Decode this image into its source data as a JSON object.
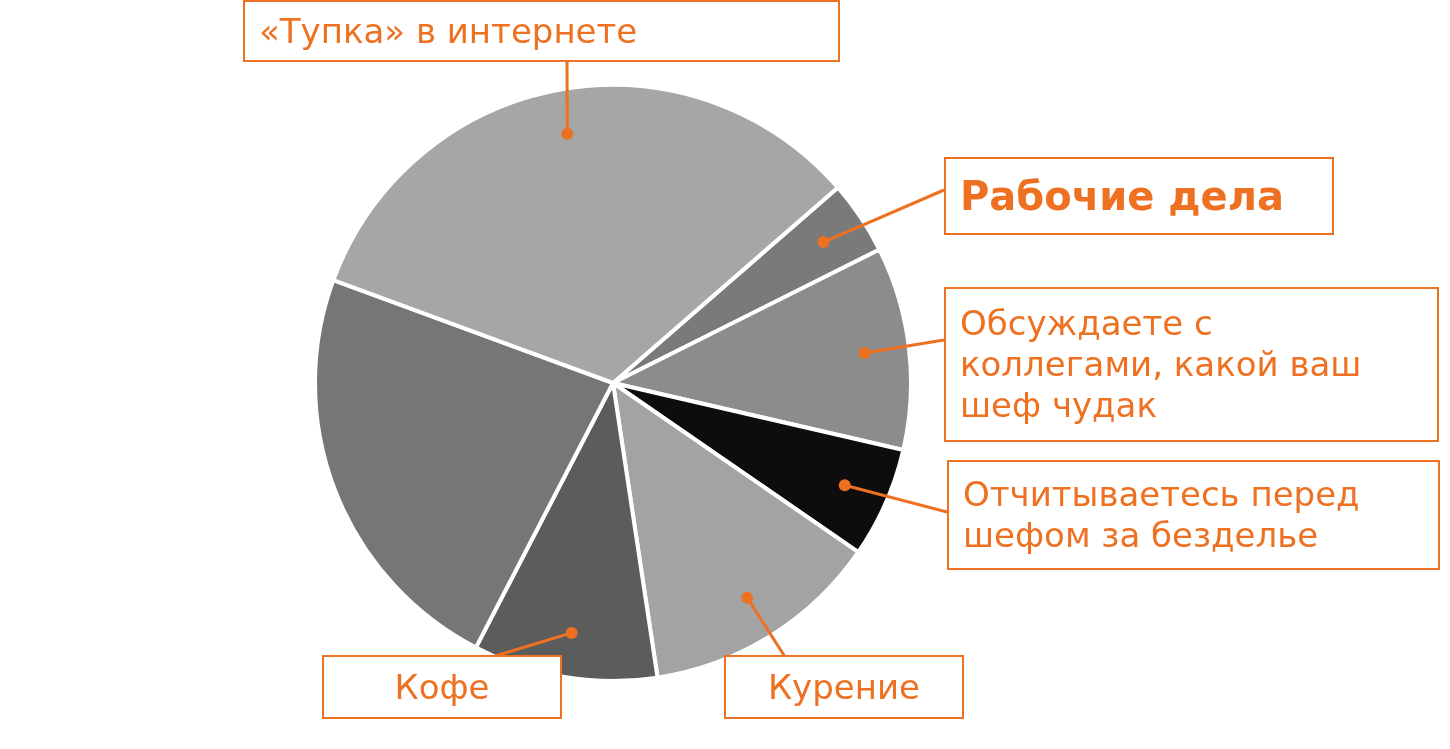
{
  "chart_data": {
    "type": "pie",
    "categories": [
      "Рабочие дела",
      "Обсуждаете с коллегами, какой ваш шеф чудак",
      "Отчитываетесь перед шефом за безделье",
      "Курение",
      "Кофе",
      null,
      "«Тупка» в интернете"
    ],
    "values": [
      4,
      11,
      6,
      13,
      10,
      23,
      33
    ],
    "colors": [
      "#7a7a7a",
      "#8c8c8c",
      "#0d0d0d",
      "#a3a3a3",
      "#5c5c5c",
      "#767676",
      "#a6a6a6"
    ]
  }
}
